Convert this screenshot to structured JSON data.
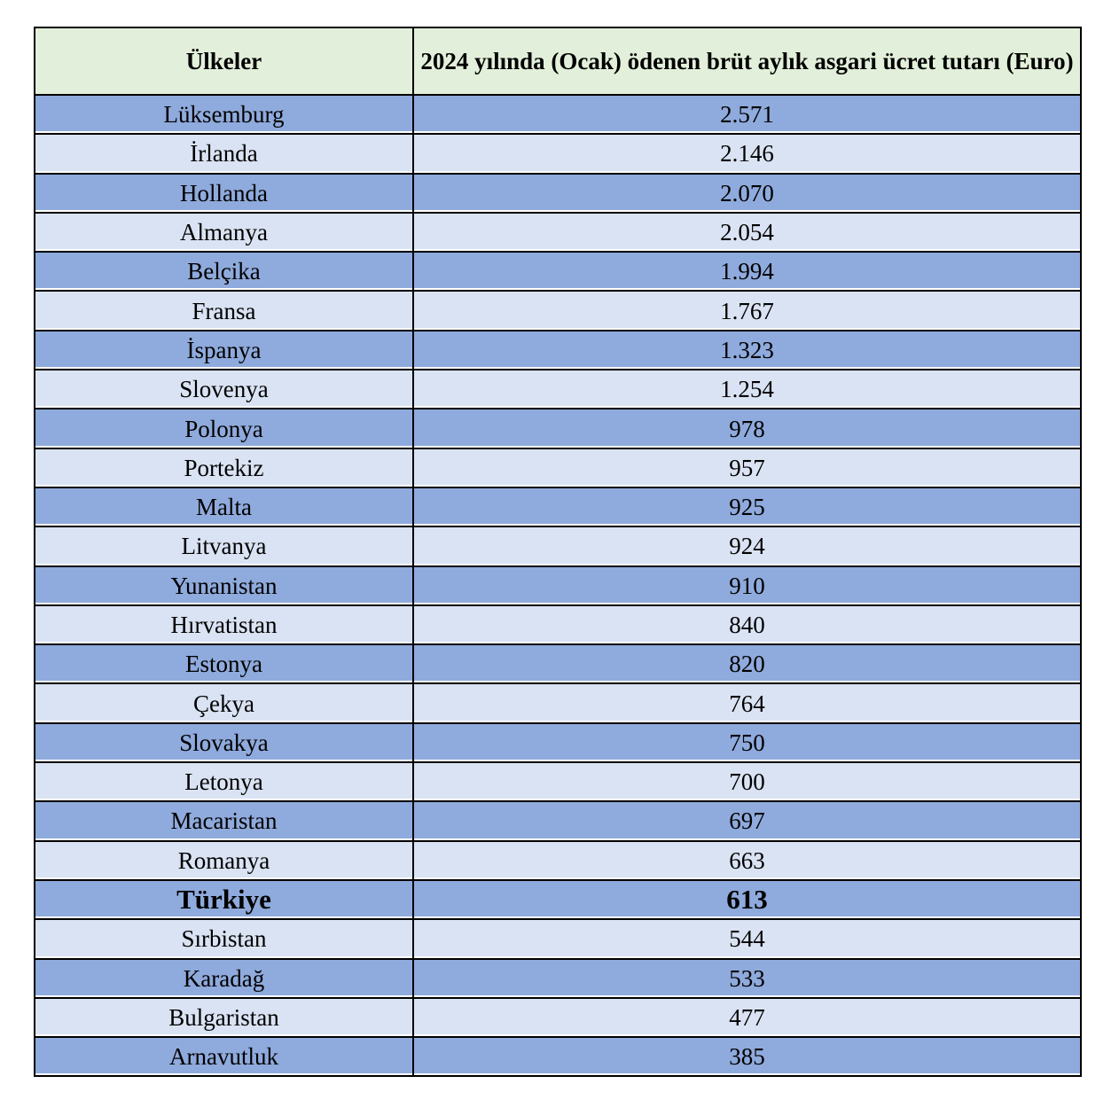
{
  "table": {
    "headers": [
      "Ülkeler",
      "2024 yılında (Ocak) ödenen brüt aylık asgari ücret tutarı (Euro)"
    ],
    "rows": [
      [
        "Lüksemburg",
        "2.571"
      ],
      [
        "İrlanda",
        "2.146"
      ],
      [
        "Hollanda",
        "2.070"
      ],
      [
        "Almanya",
        "2.054"
      ],
      [
        "Belçika",
        "1.994"
      ],
      [
        "Fransa",
        "1.767"
      ],
      [
        "İspanya",
        "1.323"
      ],
      [
        "Slovenya",
        "1.254"
      ],
      [
        "Polonya",
        "978"
      ],
      [
        "Portekiz",
        "957"
      ],
      [
        "Malta",
        "925"
      ],
      [
        "Litvanya",
        "924"
      ],
      [
        "Yunanistan",
        "910"
      ],
      [
        "Hırvatistan",
        "840"
      ],
      [
        "Estonya",
        "820"
      ],
      [
        "Çekya",
        "764"
      ],
      [
        "Slovakya",
        "750"
      ],
      [
        "Letonya",
        "700"
      ],
      [
        "Macaristan",
        "697"
      ],
      [
        "Romanya",
        "663"
      ],
      [
        "Türkiye",
        "613"
      ],
      [
        "Sırbistan",
        "544"
      ],
      [
        "Karadağ",
        "533"
      ],
      [
        "Bulgaristan",
        "477"
      ],
      [
        "Arnavutluk",
        "385"
      ]
    ],
    "highlighted_row": "Türkiye",
    "colors": {
      "header_bg": "#e2efda",
      "row_dark": "#8faadc",
      "row_light": "#dae3f3"
    }
  }
}
